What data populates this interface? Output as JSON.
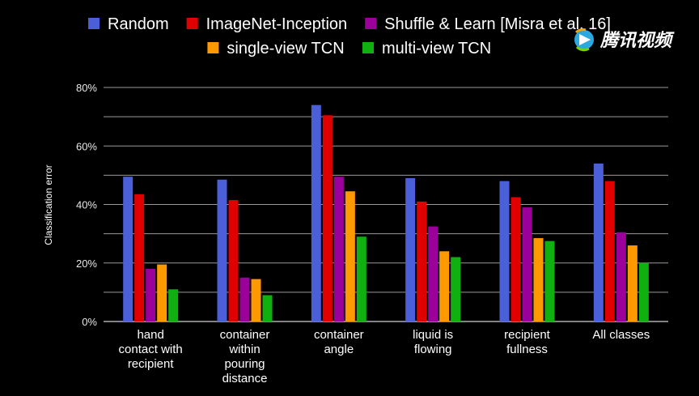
{
  "watermark": {
    "text": "腾讯视频",
    "icon": "play-logo-icon"
  },
  "chart_data": {
    "type": "bar",
    "title": "",
    "xlabel": "",
    "ylabel": "Classification error",
    "ylim": [
      0,
      80
    ],
    "yticks": [
      0,
      20,
      40,
      60,
      80
    ],
    "ytick_labels": [
      "0%",
      "20%",
      "40%",
      "60%",
      "80%"
    ],
    "grid": true,
    "legend_position": "top",
    "categories": [
      [
        "hand",
        "contact with",
        "recipient"
      ],
      [
        "container",
        "within",
        "pouring",
        "distance"
      ],
      [
        "container",
        "angle"
      ],
      [
        "liquid is",
        "flowing"
      ],
      [
        "recipient",
        "fullness"
      ],
      [
        "All classes"
      ]
    ],
    "series": [
      {
        "name": "Random",
        "color": "#4a5fd8",
        "values": [
          49.5,
          48.5,
          74,
          49,
          48,
          54
        ]
      },
      {
        "name": "ImageNet-Inception",
        "color": "#e00000",
        "values": [
          43.5,
          41.5,
          70.5,
          41,
          42.5,
          48
        ]
      },
      {
        "name": "Shuffle & Learn [Misra et al. 16]",
        "color": "#9b009b",
        "values": [
          18,
          15,
          49.5,
          32.5,
          39,
          30.5
        ]
      },
      {
        "name": "single-view TCN",
        "color": "#ff9900",
        "values": [
          19.5,
          14.5,
          44.5,
          24,
          28.5,
          26
        ]
      },
      {
        "name": "multi-view TCN",
        "color": "#10b010",
        "values": [
          11,
          9,
          29,
          22,
          27.5,
          20
        ]
      }
    ]
  }
}
